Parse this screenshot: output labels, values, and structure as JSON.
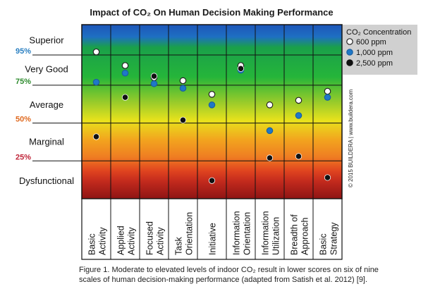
{
  "chart_data": {
    "type": "scatter",
    "title": "Impact of CO₂ On Human Decision Making Performance",
    "categories": [
      [
        "Basic",
        "Activity"
      ],
      [
        "Applied",
        "Activity"
      ],
      [
        "Focused",
        "Activity"
      ],
      [
        "Task",
        "Orientation"
      ],
      [
        "Initiative"
      ],
      [
        "Information",
        "Orientation"
      ],
      [
        "Information",
        "Utilization"
      ],
      [
        "Breadth of",
        "Approach"
      ],
      [
        "Basic",
        "Strategy"
      ]
    ],
    "ylim": [
      0,
      115
    ],
    "bands": [
      {
        "label": "Superior",
        "y": 105
      },
      {
        "label": "Very Good",
        "y": 86
      },
      {
        "label": "Average",
        "y": 62.5
      },
      {
        "label": "Marginal",
        "y": 38
      },
      {
        "label": "Dysfunctional",
        "y": 12
      }
    ],
    "reference_lines": [
      {
        "label": "95%",
        "value": 95,
        "color": "#2a7fc1"
      },
      {
        "label": "75%",
        "value": 75,
        "color": "#2e8b2e"
      },
      {
        "label": "50%",
        "value": 50,
        "color": "#e06a20"
      },
      {
        "label": "25%",
        "value": 25,
        "color": "#c0263a"
      }
    ],
    "series": [
      {
        "name": "600 ppm",
        "color": "#ffffff",
        "values": [
          97,
          88,
          80,
          78,
          69,
          88,
          62,
          65,
          71
        ]
      },
      {
        "name": "1,000 ppm",
        "color": "#1f78c8",
        "values": [
          77,
          83,
          76,
          73,
          62,
          85,
          45,
          55,
          67
        ]
      },
      {
        "name": "2,500 ppm",
        "color": "#111111",
        "values": [
          41,
          67,
          81,
          52,
          12,
          86,
          27,
          28,
          14
        ]
      }
    ],
    "legend": {
      "title": "CO₂ Concentration",
      "position": "right"
    },
    "side_note": "© 2015 BUILDERA | www.buildera.com",
    "grid": true
  },
  "caption": {
    "line1": "Figure 1. Moderate to elevated levels of indoor CO₂ result in lower scores on six of nine",
    "line2": "scales of human decision-making performance (adapted from Satish et al. 2012) [9]."
  }
}
